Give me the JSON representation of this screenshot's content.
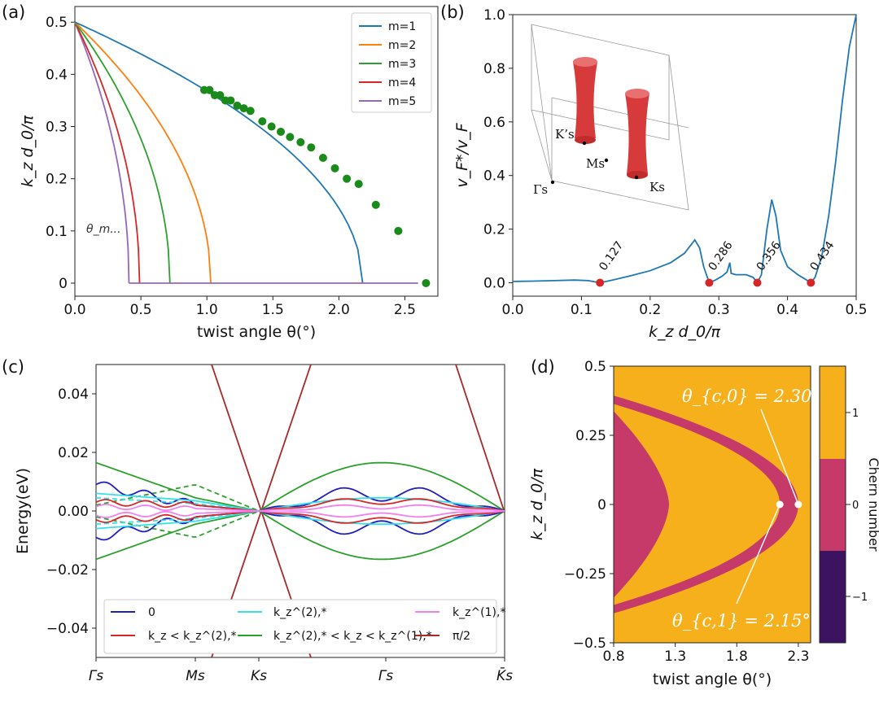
{
  "chart_data": [
    {
      "panel": "(a)",
      "type": "line",
      "xlabel": "twist angle θ(°)",
      "ylabel": "k_z d_0/π",
      "xlim": [
        0,
        2.75
      ],
      "ylim": [
        -0.025,
        0.53
      ],
      "xticks": [
        "0.0",
        "0.5",
        "1.0",
        "1.5",
        "2.0",
        "2.5"
      ],
      "yticks": [
        "0",
        "0.1",
        "0.2",
        "0.3",
        "0.4",
        "0.5"
      ],
      "legend_position": "top-right",
      "series": [
        {
          "name": "m=1",
          "color": "#1f77b4",
          "end_theta": 2.18
        },
        {
          "name": "m=2",
          "color": "#ff7f0e",
          "end_theta": 1.03
        },
        {
          "name": "m=3",
          "color": "#2ca02c",
          "end_theta": 0.72
        },
        {
          "name": "m=4",
          "color": "#d62728",
          "end_theta": 0.49
        },
        {
          "name": "m=5",
          "color": "#9467bd",
          "end_theta": 0.41
        }
      ],
      "horizontal_line_end": 2.6,
      "annotation": "θ_m...",
      "scatter": {
        "color": "#1a8a1a",
        "points": [
          [
            0.98,
            0.37
          ],
          [
            1.02,
            0.37
          ],
          [
            1.06,
            0.36
          ],
          [
            1.1,
            0.36
          ],
          [
            1.14,
            0.35
          ],
          [
            1.18,
            0.35
          ],
          [
            1.23,
            0.34
          ],
          [
            1.28,
            0.335
          ],
          [
            1.33,
            0.33
          ],
          [
            1.42,
            0.31
          ],
          [
            1.49,
            0.3
          ],
          [
            1.56,
            0.29
          ],
          [
            1.63,
            0.28
          ],
          [
            1.71,
            0.27
          ],
          [
            1.79,
            0.26
          ],
          [
            1.88,
            0.24
          ],
          [
            1.97,
            0.22
          ],
          [
            2.06,
            0.2
          ],
          [
            2.15,
            0.19
          ],
          [
            2.28,
            0.15
          ],
          [
            2.45,
            0.1
          ],
          [
            2.66,
            0.0
          ]
        ]
      }
    },
    {
      "panel": "(b)",
      "type": "line",
      "xlabel": "k_z d_0/π",
      "ylabel": "v_F*/v_F",
      "xlim": [
        0,
        0.5
      ],
      "ylim": [
        -0.05,
        1.0
      ],
      "xticks": [
        "0.0",
        "0.1",
        "0.2",
        "0.3",
        "0.4",
        "0.5"
      ],
      "yticks": [
        "0.0",
        "0.2",
        "0.4",
        "0.6",
        "0.8",
        "1.0"
      ],
      "color": "#1f77b4",
      "curve": [
        [
          0,
          0.005
        ],
        [
          0.03,
          0.006
        ],
        [
          0.06,
          0.008
        ],
        [
          0.09,
          0.01
        ],
        [
          0.11,
          0.008
        ],
        [
          0.127,
          0
        ],
        [
          0.145,
          0.01
        ],
        [
          0.17,
          0.025
        ],
        [
          0.2,
          0.045
        ],
        [
          0.23,
          0.075
        ],
        [
          0.25,
          0.11
        ],
        [
          0.265,
          0.16
        ],
        [
          0.272,
          0.13
        ],
        [
          0.278,
          0.06
        ],
        [
          0.286,
          0
        ],
        [
          0.295,
          0.01
        ],
        [
          0.305,
          0.025
        ],
        [
          0.312,
          0.04
        ],
        [
          0.316,
          0.075
        ],
        [
          0.318,
          0.035
        ],
        [
          0.325,
          0.03
        ],
        [
          0.34,
          0.03
        ],
        [
          0.35,
          0.02
        ],
        [
          0.356,
          0
        ],
        [
          0.362,
          0.03
        ],
        [
          0.37,
          0.2
        ],
        [
          0.377,
          0.31
        ],
        [
          0.383,
          0.25
        ],
        [
          0.39,
          0.12
        ],
        [
          0.4,
          0.06
        ],
        [
          0.415,
          0.03
        ],
        [
          0.428,
          0.01
        ],
        [
          0.434,
          0
        ],
        [
          0.44,
          0.02
        ],
        [
          0.45,
          0.1
        ],
        [
          0.46,
          0.25
        ],
        [
          0.47,
          0.45
        ],
        [
          0.48,
          0.68
        ],
        [
          0.49,
          0.88
        ],
        [
          0.5,
          1.0
        ]
      ],
      "red_points": [
        0.127,
        0.286,
        0.356,
        0.434
      ],
      "red_labels": [
        "0.127",
        "0.286",
        "0.356",
        "0.434"
      ],
      "inset_labels": {
        "K": "K’s",
        "M": "Ms",
        "G": "Γs",
        "Ks": "Ks"
      }
    },
    {
      "panel": "(c)",
      "type": "line",
      "ylabel": "Energy(eV)",
      "ylim": [
        -0.05,
        0.05
      ],
      "yticks": [
        "0.04",
        "0.02",
        "0.00",
        "−0.02",
        "−0.04"
      ],
      "xticks": [
        "Γs",
        "Ms",
        "Ks",
        "Γs",
        "K̄s"
      ],
      "legend": [
        {
          "label": "0",
          "color": "#1f1fbf"
        },
        {
          "label": "k_z < k_z^(2),*",
          "color": "#d62728"
        },
        {
          "label": "k_z^(2),*",
          "color": "#33e0e8"
        },
        {
          "label": "k_z^(2),* < k_z < k_z^(1),*",
          "color": "#2ca02c"
        },
        {
          "label": "k_z^(1),*",
          "color": "#ee82ee"
        },
        {
          "label": "π/2",
          "color": "#a52a2a"
        }
      ]
    },
    {
      "panel": "(d)",
      "type": "heatmap",
      "xlabel": "twist angle θ(°)",
      "ylabel": "k_z d_0/π",
      "xlim": [
        0.8,
        2.4
      ],
      "ylim": [
        -0.5,
        0.5
      ],
      "xticks": [
        "0.8",
        "1.3",
        "1.8",
        "2.3"
      ],
      "yticks": [
        "0.5",
        "0.25",
        "0",
        "−0.25",
        "−0.5"
      ],
      "colorbar_label": "Chern number",
      "colorbar_ticks": [
        "1",
        "0",
        "−1"
      ],
      "colors": {
        "c1": "#f6b01c",
        "c0": "#c63a6a",
        "cm1": "#3b1361"
      },
      "annotations": [
        "θ_{c,0} = 2.30°",
        "θ_{c,1} = 2.15°"
      ],
      "marked_points": [
        [
          2.3,
          0
        ],
        [
          2.15,
          0
        ]
      ]
    }
  ]
}
